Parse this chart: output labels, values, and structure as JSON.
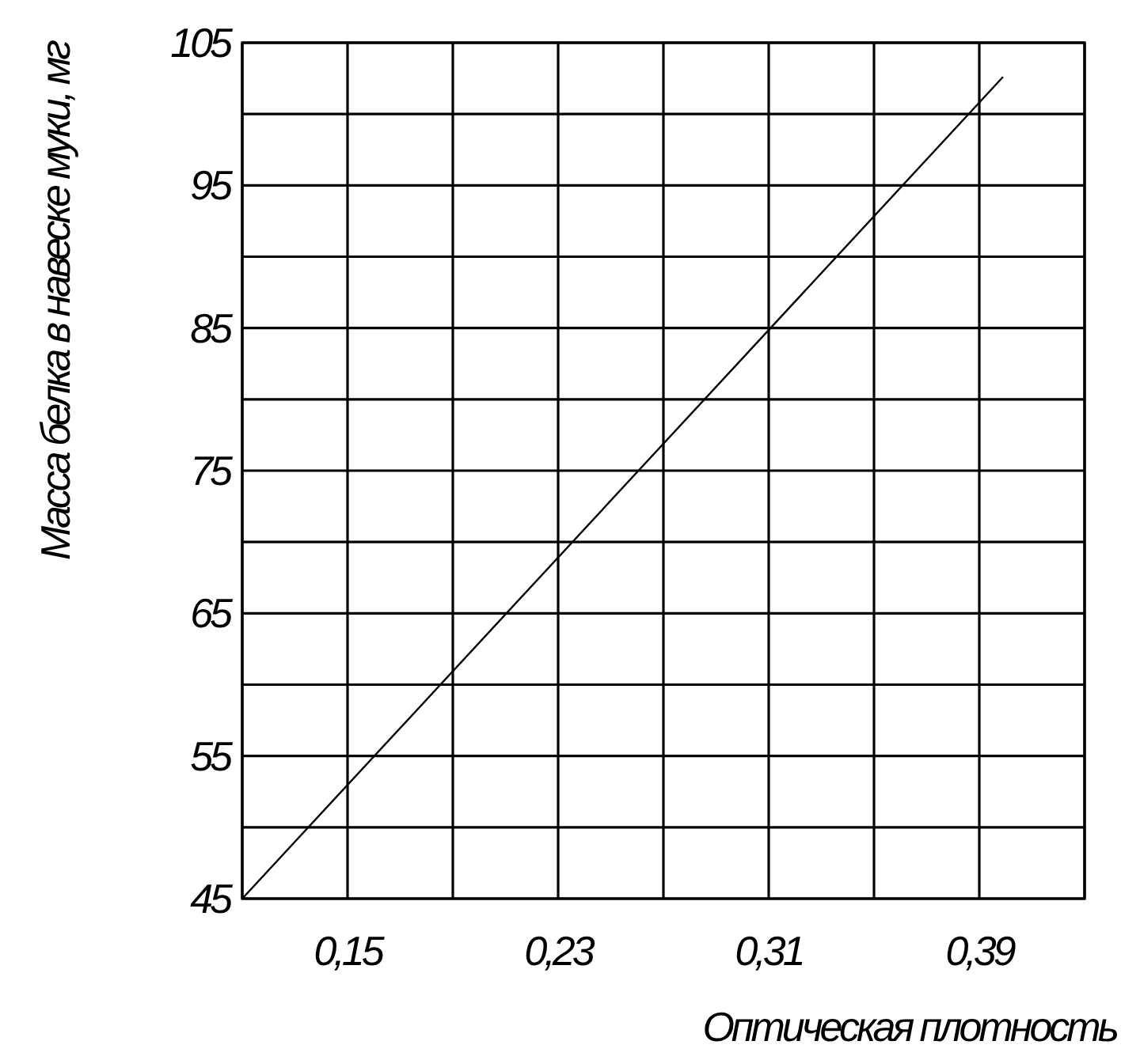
{
  "chart_data": {
    "type": "line",
    "xlabel": "Оптическая плотность",
    "ylabel": "Масса белка в навеске муки, мг",
    "x": [
      0.11,
      0.399
    ],
    "series": [
      {
        "color": "#000000",
        "values": [
          45,
          102.6
        ]
      }
    ],
    "xlim": [
      0.11,
      0.43
    ],
    "ylim": [
      45,
      105
    ],
    "xticks": [
      {
        "value": 0.11,
        "label": null
      },
      {
        "value": 0.15,
        "label": "0,15"
      },
      {
        "value": 0.19,
        "label": null
      },
      {
        "value": 0.23,
        "label": "0,23"
      },
      {
        "value": 0.27,
        "label": null
      },
      {
        "value": 0.31,
        "label": "0,31"
      },
      {
        "value": 0.35,
        "label": null
      },
      {
        "value": 0.39,
        "label": "0,39"
      },
      {
        "value": 0.43,
        "label": null
      }
    ],
    "yticks": [
      45,
      {
        "value": 50,
        "label": null
      },
      55,
      {
        "value": 60,
        "label": null
      },
      65,
      {
        "value": 70,
        "label": null
      },
      75,
      {
        "value": 80,
        "label": null
      },
      85,
      {
        "value": 90,
        "label": null
      },
      95,
      {
        "value": 100,
        "label": null
      },
      105
    ],
    "grid": true,
    "marker": "none",
    "line_style": "solid"
  }
}
